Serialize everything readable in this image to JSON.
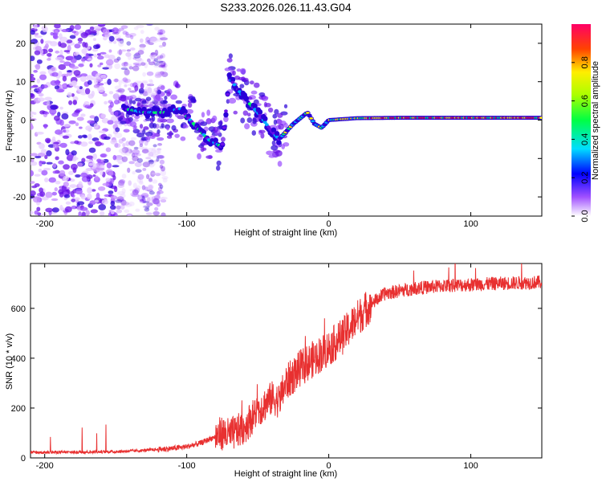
{
  "title": "S233.2026.026.11.43.G04",
  "chart_data": [
    {
      "type": "heatmap",
      "xlabel": "Height of straight line (km)",
      "ylabel": "Frequency (Hz)",
      "xlim": [
        -210,
        150
      ],
      "ylim": [
        -25,
        25
      ],
      "x_ticks": [
        -200,
        -100,
        0,
        100
      ],
      "y_ticks": [
        -20,
        -10,
        0,
        10,
        20
      ],
      "colorbar": {
        "label": "Normalized spectral amplitude",
        "range": [
          0,
          1
        ],
        "ticks": [
          0.0,
          0.2,
          0.4,
          0.6,
          0.8
        ],
        "tick_labels": [
          "0.0",
          "0.2",
          "0.4",
          "0.6",
          "0.8"
        ]
      },
      "ridge": [
        {
          "x": -145,
          "y": 3
        },
        {
          "x": -130,
          "y": 2
        },
        {
          "x": -115,
          "y": 2
        },
        {
          "x": -105,
          "y": 3
        },
        {
          "x": -95,
          "y": -1
        },
        {
          "x": -85,
          "y": -5
        },
        {
          "x": -75,
          "y": -7
        },
        {
          "x": -70,
          "y": 11
        },
        {
          "x": -60,
          "y": 6
        },
        {
          "x": -50,
          "y": 2
        },
        {
          "x": -40,
          "y": -3
        },
        {
          "x": -35,
          "y": -5
        },
        {
          "x": -25,
          "y": -1
        },
        {
          "x": -15,
          "y": 2
        },
        {
          "x": -10,
          "y": -1
        },
        {
          "x": -5,
          "y": -2
        },
        {
          "x": 0,
          "y": 0
        },
        {
          "x": 20,
          "y": 0.5
        },
        {
          "x": 50,
          "y": 0.6
        },
        {
          "x": 100,
          "y": 0.6
        },
        {
          "x": 150,
          "y": 0.6
        }
      ]
    },
    {
      "type": "line",
      "xlabel": "Height of straight line (km)",
      "ylabel": "SNR (10 * v/v)",
      "xlim": [
        -210,
        150
      ],
      "ylim": [
        0,
        780
      ],
      "x_ticks": [
        -200,
        -100,
        0,
        100
      ],
      "y_ticks": [
        0,
        200,
        400,
        600
      ],
      "series": [
        {
          "name": "SNR",
          "color": "#e83030",
          "trend": [
            {
              "x": -210,
              "y": 22
            },
            {
              "x": -180,
              "y": 23
            },
            {
              "x": -150,
              "y": 25
            },
            {
              "x": -130,
              "y": 30
            },
            {
              "x": -110,
              "y": 38
            },
            {
              "x": -100,
              "y": 45
            },
            {
              "x": -90,
              "y": 60
            },
            {
              "x": -80,
              "y": 85
            },
            {
              "x": -75,
              "y": 100
            },
            {
              "x": -70,
              "y": 90
            },
            {
              "x": -60,
              "y": 120
            },
            {
              "x": -50,
              "y": 190
            },
            {
              "x": -40,
              "y": 240
            },
            {
              "x": -35,
              "y": 230
            },
            {
              "x": -30,
              "y": 300
            },
            {
              "x": -20,
              "y": 360
            },
            {
              "x": -10,
              "y": 400
            },
            {
              "x": 0,
              "y": 440
            },
            {
              "x": 10,
              "y": 490
            },
            {
              "x": 20,
              "y": 560
            },
            {
              "x": 30,
              "y": 620
            },
            {
              "x": 40,
              "y": 660
            },
            {
              "x": 60,
              "y": 680
            },
            {
              "x": 80,
              "y": 690
            },
            {
              "x": 100,
              "y": 695
            },
            {
              "x": 120,
              "y": 700
            },
            {
              "x": 150,
              "y": 705
            }
          ]
        }
      ]
    }
  ]
}
